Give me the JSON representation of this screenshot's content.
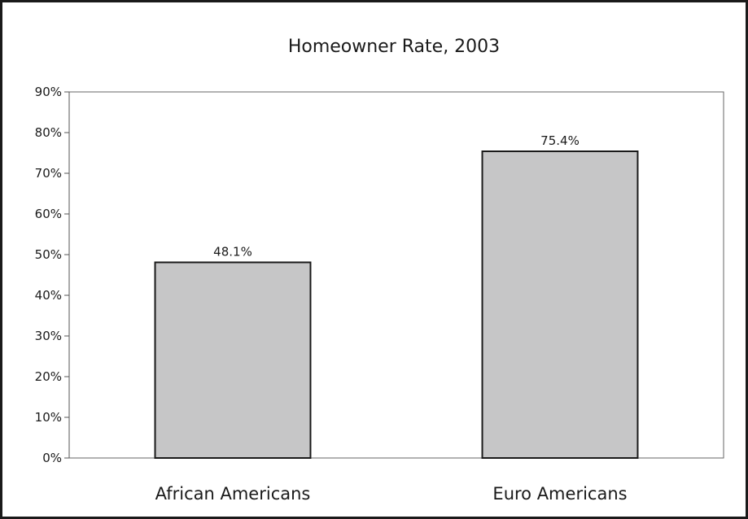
{
  "chart_data": {
    "type": "bar",
    "title": "Homeowner Rate, 2003",
    "xlabel": "",
    "ylabel": "",
    "categories": [
      "African Americans",
      "Euro Americans"
    ],
    "values": [
      48.1,
      75.4
    ],
    "data_labels": [
      "48.1%",
      "75.4%"
    ],
    "ylim": [
      0,
      90
    ],
    "yticks": [
      0,
      10,
      20,
      30,
      40,
      50,
      60,
      70,
      80,
      90
    ],
    "ytick_labels": [
      "0%",
      "10%",
      "20%",
      "30%",
      "40%",
      "50%",
      "60%",
      "70%",
      "80%",
      "90%"
    ],
    "grid": false,
    "legend": "none",
    "colors": {
      "bar_fill": "#c6c6c7",
      "bar_stroke": "#1a1a1a",
      "frame": "#1a1a1a",
      "axis": "#555555"
    }
  }
}
